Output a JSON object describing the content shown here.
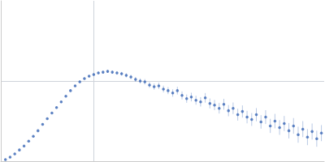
{
  "chart_data": {
    "type": "scatter",
    "color": "#3a66b5",
    "marker": "circle",
    "grid": true,
    "tick_labels": false,
    "xlim": [
      0,
      3.48
    ],
    "xticks": [
      1
    ],
    "ylim": [
      0,
      2
    ],
    "yticks": [
      1
    ],
    "x": [
      0.05,
      0.1,
      0.15,
      0.2,
      0.25,
      0.3,
      0.35,
      0.4,
      0.45,
      0.5,
      0.55,
      0.6,
      0.65,
      0.7,
      0.75,
      0.8,
      0.85,
      0.9,
      0.95,
      1.0,
      1.05,
      1.1,
      1.15,
      1.2,
      1.25,
      1.3,
      1.35,
      1.4,
      1.45,
      1.5,
      1.55,
      1.6,
      1.65,
      1.7,
      1.75,
      1.8,
      1.85,
      1.9,
      1.95,
      2.0,
      2.05,
      2.1,
      2.15,
      2.2,
      2.25,
      2.3,
      2.35,
      2.4,
      2.45,
      2.5,
      2.55,
      2.6,
      2.65,
      2.7,
      2.75,
      2.8,
      2.85,
      2.9,
      2.95,
      3.0,
      3.05,
      3.1,
      3.15,
      3.2,
      3.25,
      3.3,
      3.35,
      3.4,
      3.45
    ],
    "values": [
      0.02,
      0.05,
      0.09,
      0.14,
      0.19,
      0.25,
      0.31,
      0.38,
      0.46,
      0.53,
      0.6,
      0.67,
      0.74,
      0.81,
      0.88,
      0.94,
      0.99,
      1.03,
      1.06,
      1.08,
      1.1,
      1.11,
      1.12,
      1.11,
      1.1,
      1.09,
      1.07,
      1.05,
      1.02,
      1.0,
      0.99,
      0.95,
      0.93,
      0.94,
      0.9,
      0.88,
      0.85,
      0.88,
      0.82,
      0.78,
      0.8,
      0.76,
      0.74,
      0.79,
      0.72,
      0.7,
      0.66,
      0.71,
      0.63,
      0.66,
      0.58,
      0.62,
      0.55,
      0.52,
      0.58,
      0.49,
      0.55,
      0.44,
      0.5,
      0.42,
      0.47,
      0.38,
      0.44,
      0.33,
      0.4,
      0.3,
      0.37,
      0.28,
      0.35
    ],
    "errors": [
      0.005,
      0.005,
      0.005,
      0.005,
      0.005,
      0.006,
      0.006,
      0.006,
      0.007,
      0.007,
      0.008,
      0.008,
      0.009,
      0.01,
      0.01,
      0.011,
      0.012,
      0.013,
      0.014,
      0.015,
      0.016,
      0.017,
      0.018,
      0.02,
      0.022,
      0.024,
      0.026,
      0.028,
      0.03,
      0.032,
      0.034,
      0.036,
      0.038,
      0.04,
      0.042,
      0.044,
      0.046,
      0.048,
      0.05,
      0.052,
      0.054,
      0.056,
      0.058,
      0.06,
      0.062,
      0.064,
      0.066,
      0.068,
      0.07,
      0.072,
      0.074,
      0.076,
      0.078,
      0.08,
      0.082,
      0.084,
      0.086,
      0.088,
      0.09,
      0.092,
      0.094,
      0.096,
      0.098,
      0.1,
      0.1,
      0.1,
      0.1,
      0.1,
      0.1
    ]
  }
}
